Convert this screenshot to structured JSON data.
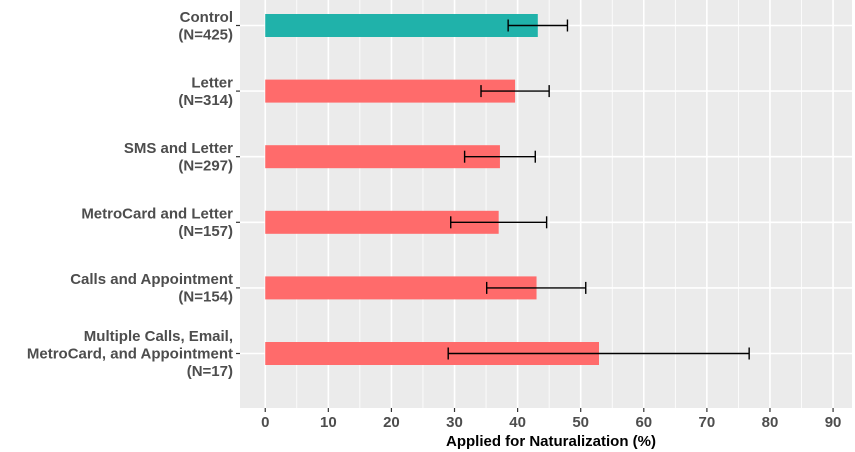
{
  "chart_data": {
    "type": "bar",
    "orientation": "horizontal",
    "categories": [
      [
        "Control",
        "(N=425)"
      ],
      [
        "Letter",
        "(N=314)"
      ],
      [
        "SMS and Letter",
        "(N=297)"
      ],
      [
        "MetroCard and Letter",
        "(N=157)"
      ],
      [
        "Calls and Appointment",
        "(N=154)"
      ],
      [
        "Multiple Calls, Email,",
        "MetroCard, and Appointment",
        "(N=17)"
      ]
    ],
    "values": [
      43.2,
      39.6,
      37.2,
      37.0,
      43.0,
      52.9
    ],
    "error_low": [
      38.5,
      34.2,
      31.6,
      29.4,
      35.1,
      29.0
    ],
    "error_high": [
      47.9,
      45.0,
      42.8,
      44.6,
      50.8,
      76.7
    ],
    "bar_colors": [
      "#20b2aa",
      "#ff6b6b",
      "#ff6b6b",
      "#ff6b6b",
      "#ff6b6b",
      "#ff6b6b"
    ],
    "xlabel": "Applied for Naturalization (%)",
    "ylabel": "",
    "xlim": [
      -4,
      93
    ],
    "x_ticks": [
      0,
      10,
      20,
      30,
      40,
      50,
      60,
      70,
      80,
      90
    ],
    "grid": true,
    "panel_color": "#ebebeb",
    "legend": "none"
  }
}
